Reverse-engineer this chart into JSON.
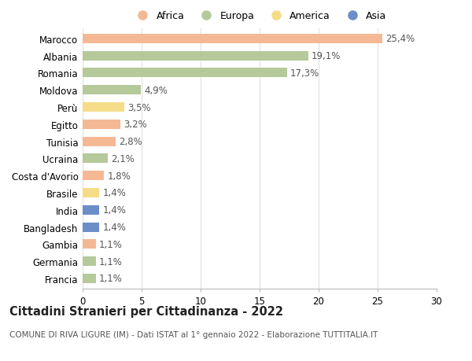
{
  "title": "Cittadini Stranieri per Cittadinanza - 2022",
  "subtitle": "COMUNE DI RIVA LIGURE (IM) - Dati ISTAT al 1° gennaio 2022 - Elaborazione TUTTITALIA.IT",
  "categories": [
    "Marocco",
    "Albania",
    "Romania",
    "Moldova",
    "Perù",
    "Egitto",
    "Tunisia",
    "Ucraina",
    "Costa d'Avorio",
    "Brasile",
    "India",
    "Bangladesh",
    "Gambia",
    "Germania",
    "Francia"
  ],
  "values": [
    25.4,
    19.1,
    17.3,
    4.9,
    3.5,
    3.2,
    2.8,
    2.1,
    1.8,
    1.4,
    1.4,
    1.4,
    1.1,
    1.1,
    1.1
  ],
  "continents": [
    "Africa",
    "Europa",
    "Europa",
    "Europa",
    "America",
    "Africa",
    "Africa",
    "Europa",
    "Africa",
    "America",
    "Asia",
    "Asia",
    "Africa",
    "Europa",
    "Europa"
  ],
  "continent_colors": {
    "Africa": "#F5B895",
    "Europa": "#B5C99A",
    "America": "#F5DC88",
    "Asia": "#6B8EC8"
  },
  "legend_order": [
    "Africa",
    "Europa",
    "America",
    "Asia"
  ],
  "xlim": [
    0,
    30
  ],
  "xticks": [
    0,
    5,
    10,
    15,
    20,
    25,
    30
  ],
  "background_color": "#ffffff",
  "grid_color": "#e0e0e0",
  "bar_height": 0.55,
  "label_fontsize": 8.5,
  "tick_fontsize": 8.5,
  "title_fontsize": 10.5,
  "subtitle_fontsize": 7.5
}
